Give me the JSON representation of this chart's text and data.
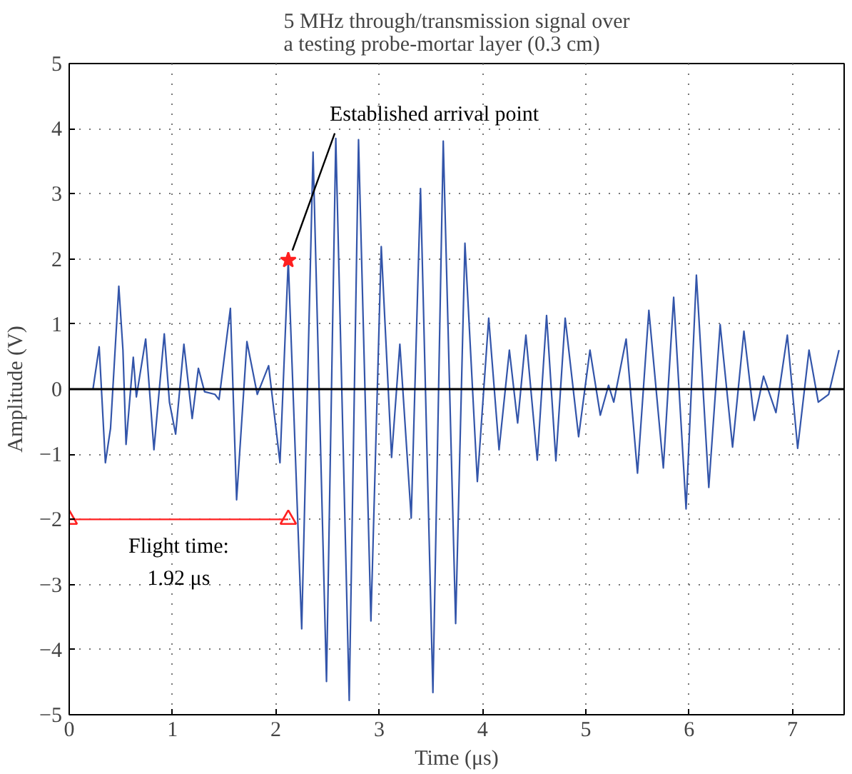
{
  "chart_data": {
    "type": "line",
    "title": "5 MHz through/transmission signal over\na testing probe-mortar layer (0.3 cm)",
    "xlabel": "Time (μs)",
    "ylabel": "Amplitude (V)",
    "xlim": [
      0,
      7.5
    ],
    "ylim": [
      -5,
      5
    ],
    "xticks": [
      0,
      1,
      2,
      3,
      4,
      5,
      6,
      7
    ],
    "yticks": [
      -5,
      -4,
      -3,
      -2,
      -1,
      0,
      1,
      2,
      3,
      4,
      5
    ],
    "grid": true,
    "line_style": "solid",
    "marker": "none",
    "series": [
      {
        "color": "#3355aa",
        "x": [
          0,
          0.23,
          0.29,
          0.35,
          0.4,
          0.48,
          0.52,
          0.55,
          0.62,
          0.65,
          0.74,
          0.82,
          0.92,
          0.97,
          1.03,
          1.11,
          1.19,
          1.25,
          1.31,
          1.41,
          1.45,
          1.56,
          1.62,
          1.72,
          1.82,
          1.93,
          2.04,
          2.12,
          2.25,
          2.36,
          2.49,
          2.58,
          2.71,
          2.8,
          2.92,
          3.02,
          3.12,
          3.2,
          3.31,
          3.4,
          3.52,
          3.62,
          3.74,
          3.83,
          3.95,
          4.06,
          4.16,
          4.26,
          4.34,
          4.42,
          4.53,
          4.62,
          4.71,
          4.8,
          4.93,
          5.04,
          5.14,
          5.22,
          5.27,
          5.39,
          5.5,
          5.61,
          5.75,
          5.85,
          5.97,
          6.07,
          6.19,
          6.3,
          6.42,
          6.53,
          6.63,
          6.72,
          6.84,
          6.95,
          7.05,
          7.16,
          7.25,
          7.35,
          7.45
        ],
        "values": [
          0,
          0,
          0.65,
          -1.13,
          -0.6,
          1.58,
          0.6,
          -0.85,
          0.49,
          -0.12,
          0.77,
          -0.93,
          0.85,
          -0.2,
          -0.69,
          0.69,
          -0.45,
          0.32,
          -0.04,
          -0.08,
          -0.16,
          1.24,
          -1.7,
          0.73,
          -0.08,
          0.36,
          -1.13,
          1.98,
          -3.68,
          3.64,
          -4.49,
          3.85,
          -4.78,
          3.83,
          -3.56,
          2.19,
          -1.05,
          0.69,
          -1.98,
          3.08,
          -4.66,
          3.81,
          -3.6,
          2.24,
          -1.42,
          1.09,
          -0.93,
          0.6,
          -0.52,
          0.83,
          -1.09,
          1.13,
          -1.1,
          1.09,
          -0.73,
          0.6,
          -0.4,
          0.06,
          -0.2,
          0.77,
          -1.29,
          1.21,
          -1.21,
          1.41,
          -1.84,
          1.75,
          -1.51,
          0.99,
          -0.89,
          0.89,
          -0.48,
          0.2,
          -0.36,
          0.83,
          -0.91,
          0.6,
          -0.2,
          -0.08,
          0.6
        ]
      },
      {
        "type": "scatter",
        "marker": "star",
        "color": "#ff2020",
        "x": [
          2.12
        ],
        "values": [
          1.98
        ]
      },
      {
        "type": "line",
        "marker": "triangle",
        "color": "#ff2020",
        "x": [
          0,
          2.12
        ],
        "values": [
          -2,
          -2
        ]
      }
    ],
    "ref_lines": [
      {
        "axis": "y",
        "value": 0,
        "color": "#000000"
      }
    ],
    "annotations": [
      {
        "text": "Established arrival point",
        "x": 2.12,
        "y": 1.98
      },
      {
        "text": "Flight time:\n1.92 μs",
        "x": 1.06,
        "y": -2
      }
    ]
  }
}
